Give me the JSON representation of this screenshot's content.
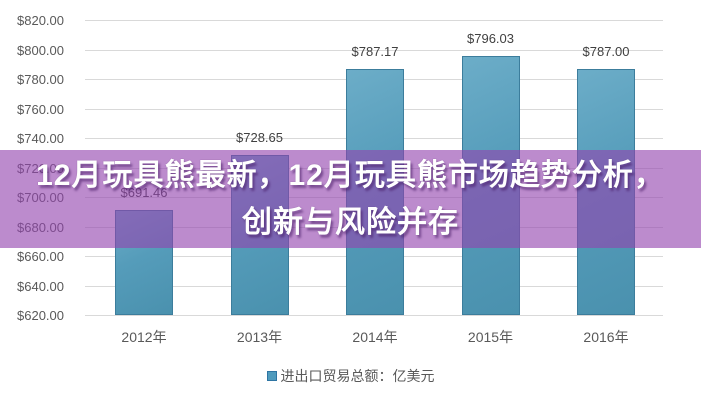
{
  "banner": {
    "line1": "12月玩具熊最新，12月玩具熊市场趋势分析，",
    "line2": "创新与风险并存",
    "bg_color": "#9343ae",
    "bg_opacity": 0.62,
    "text_color": "#ffffff"
  },
  "chart_data": {
    "type": "bar",
    "categories": [
      "2012年",
      "2013年",
      "2014年",
      "2015年",
      "2016年"
    ],
    "values": [
      691.46,
      728.65,
      787.17,
      796.03,
      787.0
    ],
    "value_labels": [
      "$691.46",
      "$728.65",
      "$787.17",
      "$796.03",
      "$787.00"
    ],
    "title": "",
    "xlabel": "",
    "ylabel": "",
    "ylim": [
      620,
      820
    ],
    "ytick_step": 20,
    "ytick_labels": [
      "$820.00",
      "$800.00",
      "$780.00",
      "$760.00",
      "$740.00",
      "$720.00",
      "$700.00",
      "$680.00",
      "$660.00",
      "$640.00",
      "$620.00"
    ],
    "grid": true,
    "legend_position": "bottom-center",
    "legend": {
      "label": "进出口贸易总额：亿美元",
      "swatch_color": "#4f9bbd",
      "swatch_border_color": "#2e75a3"
    },
    "bar_color": "#559cba",
    "bar_border_color": "#3c7d9c",
    "gridline_color": "#d9d9d9",
    "axis_text_color": "#595959",
    "value_text_color": "#404040"
  }
}
